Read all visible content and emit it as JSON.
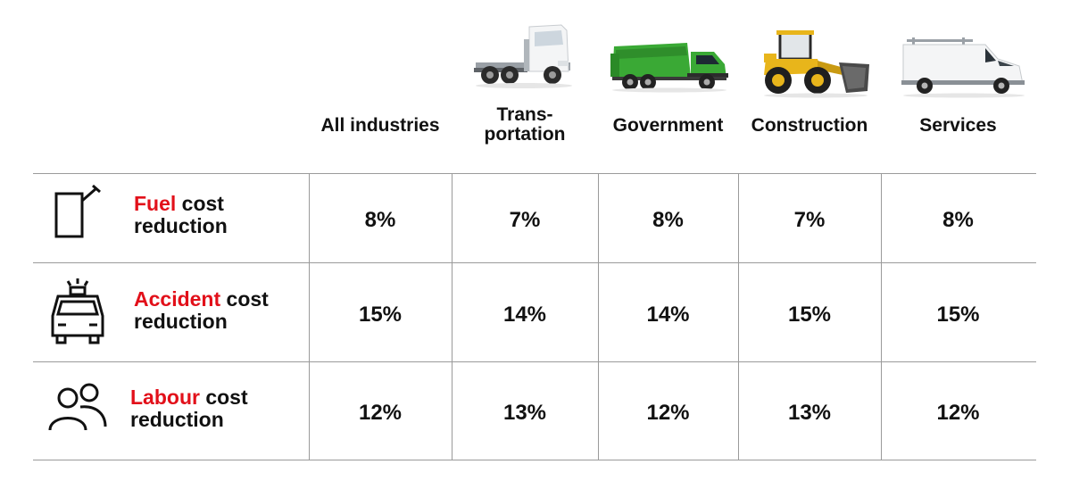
{
  "columns": [
    {
      "label_lines": [
        "All industries"
      ],
      "vehicle_icon": "none"
    },
    {
      "label_lines": [
        "Trans-",
        "portation"
      ],
      "vehicle_icon": "truck-tractor-icon"
    },
    {
      "label_lines": [
        "Government"
      ],
      "vehicle_icon": "garbage-truck-icon"
    },
    {
      "label_lines": [
        "Construction"
      ],
      "vehicle_icon": "wheel-loader-icon"
    },
    {
      "label_lines": [
        "Services"
      ],
      "vehicle_icon": "van-icon"
    }
  ],
  "rows": [
    {
      "icon": "fuel-can-icon",
      "highlight": "Fuel",
      "label_rest": " cost",
      "label_line2": "reduction",
      "values": [
        "8%",
        "7%",
        "8%",
        "7%",
        "8%"
      ]
    },
    {
      "icon": "car-accident-icon",
      "highlight": "Accident",
      "label_rest": " cost",
      "label_line2": "reduction",
      "values": [
        "15%",
        "14%",
        "14%",
        "15%",
        "15%"
      ]
    },
    {
      "icon": "people-icon",
      "highlight": "Labour",
      "label_rest": " cost",
      "label_line2": "reduction",
      "values": [
        "12%",
        "13%",
        "12%",
        "13%",
        "12%"
      ]
    }
  ],
  "colors": {
    "highlight": "#e2101a",
    "text": "#111111",
    "grid": "#9a9a9a",
    "truck_green": "#3aa935",
    "loader_yellow": "#e8b51b"
  }
}
